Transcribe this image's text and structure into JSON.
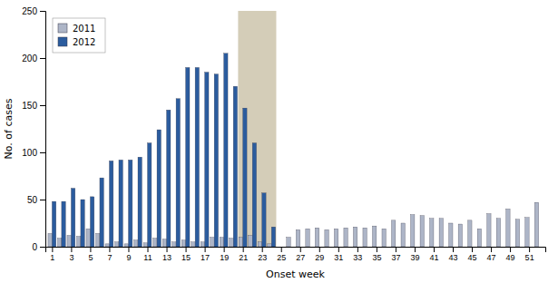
{
  "chart_data": {
    "type": "bar",
    "xlabel": "Onset week",
    "ylabel": "No. of cases",
    "x": [
      1,
      2,
      3,
      4,
      5,
      6,
      7,
      8,
      9,
      10,
      11,
      12,
      13,
      14,
      15,
      16,
      17,
      18,
      19,
      20,
      21,
      22,
      23,
      24,
      25,
      26,
      27,
      28,
      29,
      30,
      31,
      32,
      33,
      34,
      35,
      36,
      37,
      38,
      39,
      40,
      41,
      42,
      43,
      44,
      45,
      46,
      47,
      48,
      49,
      50,
      51,
      52
    ],
    "series": [
      {
        "name": "2011",
        "color": "#adb5c7",
        "values": [
          14,
          9,
          12,
          11,
          19,
          14,
          3,
          5,
          3,
          7,
          4,
          9,
          8,
          5,
          7,
          5,
          5,
          10,
          10,
          9,
          10,
          12,
          5,
          3,
          0,
          10,
          18,
          19,
          20,
          18,
          19,
          20,
          21,
          20,
          22,
          19,
          28,
          25,
          34,
          33,
          30,
          30,
          25,
          24,
          28,
          19,
          35,
          30,
          40,
          29,
          31,
          47
        ]
      },
      {
        "name": "2012",
        "color": "#2b5c9e",
        "values": [
          48,
          48,
          62,
          50,
          53,
          73,
          91,
          92,
          92,
          95,
          110,
          124,
          145,
          157,
          190,
          190,
          185,
          183,
          205,
          170,
          147,
          110,
          57,
          21,
          0,
          0,
          0,
          0,
          0,
          0,
          0,
          0,
          0,
          0,
          0,
          0,
          0,
          0,
          0,
          0,
          0,
          0,
          0,
          0,
          0,
          0,
          0,
          0,
          0,
          0,
          0,
          0
        ]
      }
    ],
    "shade": {
      "x": [
        21,
        24
      ],
      "color": "#d4cdb8"
    },
    "xlim": [
      0.3,
      52.7
    ],
    "xticks": [
      1,
      3,
      5,
      7,
      9,
      11,
      13,
      15,
      17,
      19,
      21,
      23,
      25,
      27,
      29,
      31,
      33,
      35,
      37,
      39,
      41,
      43,
      45,
      47,
      49,
      51
    ],
    "ylim": [
      0,
      250
    ],
    "yticks": [
      0,
      50,
      100,
      150,
      200,
      250
    ],
    "legend": "upper left",
    "grid": false
  }
}
